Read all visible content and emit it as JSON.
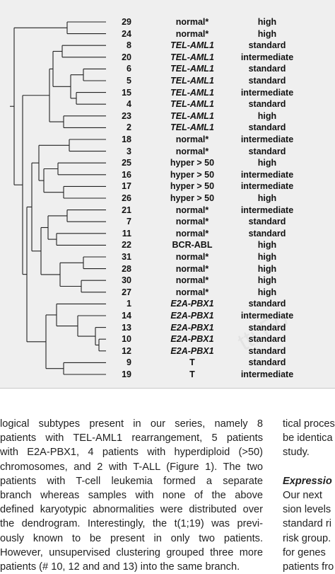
{
  "figure": {
    "watermark": "tti Fo",
    "rows": [
      {
        "id": "29",
        "subtype": "normal*",
        "italic": false,
        "risk": "high"
      },
      {
        "id": "24",
        "subtype": "normal*",
        "italic": false,
        "risk": "high"
      },
      {
        "id": "8",
        "subtype": "TEL-AML1",
        "italic": true,
        "risk": "standard"
      },
      {
        "id": "20",
        "subtype": "TEL-AML1",
        "italic": true,
        "risk": "intermediate"
      },
      {
        "id": "6",
        "subtype": "TEL-AML1",
        "italic": true,
        "risk": "standard"
      },
      {
        "id": "5",
        "subtype": "TEL-AML1",
        "italic": true,
        "risk": "standard"
      },
      {
        "id": "15",
        "subtype": "TEL-AML1",
        "italic": true,
        "risk": "intermediate"
      },
      {
        "id": "4",
        "subtype": "TEL-AML1",
        "italic": true,
        "risk": "standard"
      },
      {
        "id": "23",
        "subtype": "TEL-AML1",
        "italic": true,
        "risk": "high"
      },
      {
        "id": "2",
        "subtype": "TEL-AML1",
        "italic": true,
        "risk": "standard"
      },
      {
        "id": "18",
        "subtype": "normal*",
        "italic": false,
        "risk": "intermediate"
      },
      {
        "id": "3",
        "subtype": "normal*",
        "italic": false,
        "risk": "standard"
      },
      {
        "id": "25",
        "subtype": "hyper > 50",
        "italic": false,
        "risk": "high"
      },
      {
        "id": "16",
        "subtype": "hyper > 50",
        "italic": false,
        "risk": "intermediate"
      },
      {
        "id": "17",
        "subtype": "hyper > 50",
        "italic": false,
        "risk": "intermediate"
      },
      {
        "id": "26",
        "subtype": "hyper > 50",
        "italic": false,
        "risk": "high"
      },
      {
        "id": "21",
        "subtype": "normal*",
        "italic": false,
        "risk": "intermediate"
      },
      {
        "id": "7",
        "subtype": "normal*",
        "italic": false,
        "risk": "standard"
      },
      {
        "id": "11",
        "subtype": "normal*",
        "italic": false,
        "risk": "standard"
      },
      {
        "id": "22",
        "subtype": "BCR-ABL",
        "italic": false,
        "risk": "high"
      },
      {
        "id": "31",
        "subtype": "normal*",
        "italic": false,
        "risk": "high"
      },
      {
        "id": "28",
        "subtype": "normal*",
        "italic": false,
        "risk": "high"
      },
      {
        "id": "30",
        "subtype": "normal*",
        "italic": false,
        "risk": "high"
      },
      {
        "id": "27",
        "subtype": "normal*",
        "italic": false,
        "risk": "high"
      },
      {
        "id": "1",
        "subtype": "E2A-PBX1",
        "italic": true,
        "risk": "standard"
      },
      {
        "id": "14",
        "subtype": "E2A-PBX1",
        "italic": true,
        "risk": "intermediate"
      },
      {
        "id": "13",
        "subtype": "E2A-PBX1",
        "italic": true,
        "risk": "standard"
      },
      {
        "id": "10",
        "subtype": "E2A-PBX1",
        "italic": true,
        "risk": "standard"
      },
      {
        "id": "12",
        "subtype": "E2A-PBX1",
        "italic": true,
        "risk": "standard"
      },
      {
        "id": "9",
        "subtype": "T",
        "italic": false,
        "risk": "standard"
      },
      {
        "id": "19",
        "subtype": "T",
        "italic": false,
        "risk": "intermediate"
      }
    ]
  },
  "body_left": [
    "logical subtypes present in our series, namely 8",
    "patients with TEL-AML1 rearrangement, 5 patients",
    "with E2A-PBX1, 4 patients with hyperdiploid (>50)",
    "chromosomes, and 2 with T-ALL (Figure 1). The two",
    "patients with T-cell leukemia formed a separate",
    "branch whereas samples with none of the above",
    "defined karyotypic abnormalities were distributed over",
    "the dendrogram. Interestingly, the t(1;19) was previ-",
    "ously known to be present in only two patients.",
    "However, unsupervised clustering grouped three more",
    "patients (# 10, 12 and and 13) into the same branch."
  ],
  "body_right": [
    {
      "text": "tical proces",
      "heading": false
    },
    {
      "text": "be identica",
      "heading": false
    },
    {
      "text": "study.",
      "heading": false
    },
    {
      "text": "",
      "heading": false
    },
    {
      "text": "Expressio",
      "heading": true
    },
    {
      "text": "Our next",
      "heading": false
    },
    {
      "text": "sion levels",
      "heading": false
    },
    {
      "text": "standard ri",
      "heading": false
    },
    {
      "text": "risk group.",
      "heading": false
    },
    {
      "text": "for genes",
      "heading": false
    },
    {
      "text": "patients fro",
      "heading": false
    }
  ]
}
